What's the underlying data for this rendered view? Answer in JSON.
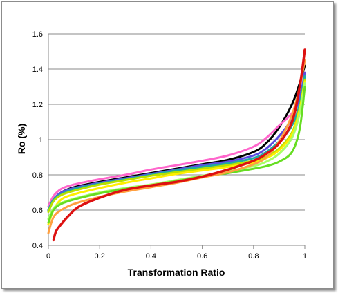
{
  "chart_data": {
    "type": "line",
    "title": "",
    "xlabel": "Transformation Ratio",
    "ylabel": "Ro (%)",
    "xlim": [
      0,
      1
    ],
    "ylim": [
      0.4,
      1.6
    ],
    "xticks": [
      "0",
      "0.2",
      "0.4",
      "0.6",
      "0.8",
      "1"
    ],
    "yticks": [
      "0.4",
      "0.6",
      "0.8",
      "1",
      "1.2",
      "1.4",
      "1.6"
    ],
    "grid": "horizontal",
    "legend": "none",
    "series": [
      {
        "color": "#000000",
        "x": [
          0.0,
          0.02,
          0.05,
          0.1,
          0.2,
          0.3,
          0.4,
          0.5,
          0.6,
          0.7,
          0.8,
          0.85,
          0.9,
          0.95,
          0.98,
          1.0
        ],
        "y": [
          0.6,
          0.66,
          0.7,
          0.73,
          0.76,
          0.785,
          0.81,
          0.835,
          0.86,
          0.885,
          0.93,
          0.98,
          1.07,
          1.2,
          1.32,
          1.42
        ]
      },
      {
        "color": "#ff66cc",
        "x": [
          0.0,
          0.02,
          0.05,
          0.1,
          0.2,
          0.3,
          0.4,
          0.5,
          0.6,
          0.7,
          0.8,
          0.85,
          0.9,
          0.95,
          0.98,
          1.0
        ],
        "y": [
          0.62,
          0.68,
          0.72,
          0.745,
          0.775,
          0.8,
          0.83,
          0.855,
          0.88,
          0.91,
          0.96,
          1.01,
          1.08,
          1.15,
          1.23,
          1.3
        ]
      },
      {
        "color": "#5b4de0",
        "x": [
          0.0,
          0.02,
          0.05,
          0.1,
          0.2,
          0.3,
          0.4,
          0.5,
          0.6,
          0.7,
          0.8,
          0.85,
          0.9,
          0.95,
          0.98,
          1.0
        ],
        "y": [
          0.6,
          0.66,
          0.7,
          0.725,
          0.755,
          0.78,
          0.805,
          0.83,
          0.855,
          0.875,
          0.91,
          0.95,
          1.02,
          1.12,
          1.24,
          1.38
        ]
      },
      {
        "color": "#22aaa0",
        "x": [
          0.0,
          0.02,
          0.05,
          0.1,
          0.2,
          0.3,
          0.4,
          0.5,
          0.6,
          0.7,
          0.8,
          0.85,
          0.9,
          0.95,
          0.98,
          1.0
        ],
        "y": [
          0.6,
          0.66,
          0.69,
          0.72,
          0.75,
          0.775,
          0.8,
          0.825,
          0.845,
          0.865,
          0.895,
          0.93,
          0.99,
          1.08,
          1.2,
          1.36
        ]
      },
      {
        "color": "#b8e000",
        "x": [
          0.0,
          0.02,
          0.05,
          0.1,
          0.2,
          0.3,
          0.4,
          0.5,
          0.6,
          0.7,
          0.8,
          0.85,
          0.9,
          0.95,
          0.98,
          1.0
        ],
        "y": [
          0.59,
          0.65,
          0.685,
          0.71,
          0.745,
          0.77,
          0.795,
          0.815,
          0.835,
          0.855,
          0.88,
          0.905,
          0.95,
          1.04,
          1.18,
          1.34
        ]
      },
      {
        "color": "#ffee00",
        "x": [
          0.0,
          0.02,
          0.05,
          0.1,
          0.2,
          0.3,
          0.4,
          0.5,
          0.6,
          0.7,
          0.8,
          0.85,
          0.9,
          0.95,
          0.98,
          1.0
        ],
        "y": [
          0.52,
          0.6,
          0.66,
          0.69,
          0.725,
          0.755,
          0.78,
          0.805,
          0.825,
          0.845,
          0.87,
          0.895,
          0.94,
          1.03,
          1.17,
          1.33
        ]
      },
      {
        "color": "#a8ff66",
        "x": [
          0.0,
          0.02,
          0.05,
          0.1,
          0.2,
          0.3,
          0.4,
          0.5,
          0.6,
          0.7,
          0.8,
          0.85,
          0.9,
          0.95,
          0.98,
          1.0
        ],
        "y": [
          0.55,
          0.61,
          0.64,
          0.665,
          0.7,
          0.725,
          0.745,
          0.77,
          0.795,
          0.82,
          0.85,
          0.875,
          0.92,
          1.01,
          1.15,
          1.32
        ]
      },
      {
        "color": "#66dd22",
        "x": [
          0.0,
          0.02,
          0.05,
          0.1,
          0.2,
          0.3,
          0.4,
          0.5,
          0.6,
          0.7,
          0.8,
          0.85,
          0.9,
          0.95,
          0.98,
          1.0
        ],
        "y": [
          0.53,
          0.6,
          0.635,
          0.66,
          0.695,
          0.72,
          0.74,
          0.765,
          0.79,
          0.81,
          0.835,
          0.85,
          0.875,
          0.93,
          1.06,
          1.3
        ]
      },
      {
        "color": "#ffa040",
        "x": [
          0.0,
          0.02,
          0.05,
          0.1,
          0.2,
          0.3,
          0.4,
          0.5,
          0.6,
          0.7,
          0.8,
          0.85,
          0.9,
          0.95,
          0.98,
          1.0
        ],
        "y": [
          0.47,
          0.56,
          0.6,
          0.635,
          0.675,
          0.705,
          0.73,
          0.755,
          0.785,
          0.815,
          0.86,
          0.9,
          0.99,
          1.14,
          1.3,
          1.45
        ]
      },
      {
        "color": "#dd1111",
        "x": [
          0.02,
          0.03,
          0.05,
          0.08,
          0.12,
          0.2,
          0.3,
          0.4,
          0.5,
          0.6,
          0.7,
          0.8,
          0.85,
          0.9,
          0.95,
          0.98,
          1.0
        ],
        "y": [
          0.43,
          0.48,
          0.52,
          0.57,
          0.62,
          0.67,
          0.715,
          0.74,
          0.76,
          0.79,
          0.83,
          0.88,
          0.92,
          0.98,
          1.1,
          1.3,
          1.51
        ]
      }
    ]
  }
}
